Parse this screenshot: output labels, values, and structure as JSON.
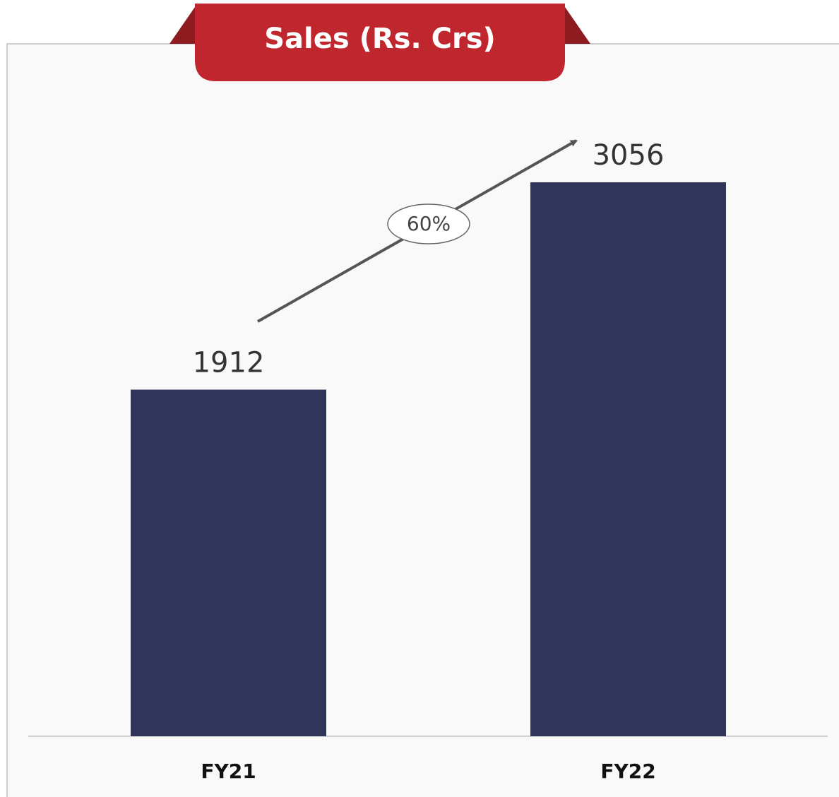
{
  "chart_data": {
    "type": "bar",
    "title": "Sales (Rs. Crs)",
    "categories": [
      "FY21",
      "FY22"
    ],
    "values": [
      1912,
      3056
    ],
    "color": "#303659",
    "annotation": "60%"
  }
}
